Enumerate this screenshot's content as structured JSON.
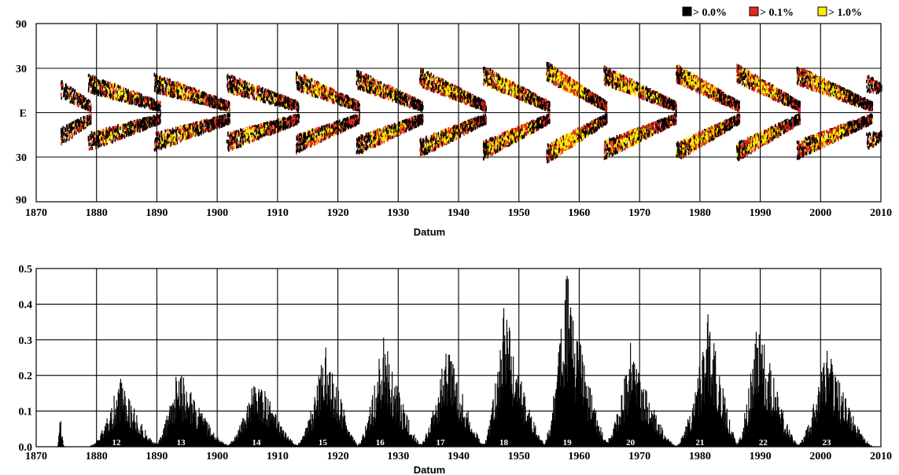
{
  "colors": {
    "level0": "#000000",
    "level1": "#e8281c",
    "level2": "#ffee00",
    "grid": "#000000",
    "bars": "#000000"
  },
  "legend": {
    "items": [
      {
        "label": "> 0.0%",
        "color": "#000000"
      },
      {
        "label": "> 0.1%",
        "color": "#e8281c"
      },
      {
        "label": "> 1.0%",
        "color": "#ffee00"
      }
    ],
    "placement": "top-right"
  },
  "chart_data": [
    {
      "type": "heatmap",
      "title": "",
      "xlabel": "Datum",
      "ylabel": "",
      "xlim": [
        1870,
        2010
      ],
      "xticks": [
        "1870",
        "1880",
        "1890",
        "1900",
        "1910",
        "1920",
        "1930",
        "1940",
        "1950",
        "1960",
        "1970",
        "1980",
        "1990",
        "2000",
        "2010"
      ],
      "yticks": [
        "90",
        "30",
        "E",
        "30",
        "90"
      ],
      "grid": true,
      "cycles": [
        {
          "start": 1874.0,
          "end": 1879.0,
          "latitude_start": 24,
          "latitude_end": 6,
          "intensity": 0.25
        },
        {
          "start": 1878.5,
          "end": 1890.5,
          "latitude_start": 30,
          "latitude_end": 6,
          "intensity": 0.45
        },
        {
          "start": 1889.5,
          "end": 1902.0,
          "latitude_start": 30,
          "latitude_end": 6,
          "intensity": 0.55
        },
        {
          "start": 1901.5,
          "end": 1913.5,
          "latitude_start": 30,
          "latitude_end": 6,
          "intensity": 0.45
        },
        {
          "start": 1913.0,
          "end": 1923.5,
          "latitude_start": 32,
          "latitude_end": 6,
          "intensity": 0.55
        },
        {
          "start": 1923.0,
          "end": 1934.0,
          "latitude_start": 34,
          "latitude_end": 6,
          "intensity": 0.6
        },
        {
          "start": 1933.5,
          "end": 1944.5,
          "latitude_start": 36,
          "latitude_end": 6,
          "intensity": 0.7
        },
        {
          "start": 1944.0,
          "end": 1955.0,
          "latitude_start": 38,
          "latitude_end": 6,
          "intensity": 0.8
        },
        {
          "start": 1954.5,
          "end": 1964.5,
          "latitude_start": 42,
          "latitude_end": 6,
          "intensity": 1.0
        },
        {
          "start": 1964.0,
          "end": 1976.0,
          "latitude_start": 38,
          "latitude_end": 6,
          "intensity": 0.7
        },
        {
          "start": 1976.0,
          "end": 1986.5,
          "latitude_start": 40,
          "latitude_end": 6,
          "intensity": 0.85
        },
        {
          "start": 1986.0,
          "end": 1996.5,
          "latitude_start": 40,
          "latitude_end": 6,
          "intensity": 0.85
        },
        {
          "start": 1996.0,
          "end": 2008.5,
          "latitude_start": 38,
          "latitude_end": 6,
          "intensity": 0.75
        },
        {
          "start": 2007.5,
          "end": 2010.0,
          "latitude_start": 30,
          "latitude_end": 24,
          "intensity": 0.2
        }
      ]
    },
    {
      "type": "bar",
      "title": "",
      "xlabel": "Datum",
      "ylabel": "",
      "xlim": [
        1870,
        2010
      ],
      "ylim": [
        0.0,
        0.5
      ],
      "xticks": [
        "1870",
        "1880",
        "1890",
        "1900",
        "1910",
        "1920",
        "1930",
        "1940",
        "1950",
        "1960",
        "1970",
        "1980",
        "1990",
        "2000",
        "2010"
      ],
      "yticks": [
        "0.0",
        "0.1",
        "0.2",
        "0.3",
        "0.4",
        "0.5"
      ],
      "grid": true,
      "cycle_labels": [
        "12",
        "13",
        "14",
        "15",
        "16",
        "17",
        "18",
        "19",
        "20",
        "21",
        "22",
        "23"
      ],
      "cycle_label_years": [
        1883.3,
        1894.0,
        1906.5,
        1917.5,
        1927.0,
        1937.0,
        1947.5,
        1958.0,
        1968.5,
        1980.0,
        1990.5,
        2001.0
      ],
      "cycles": [
        {
          "start": 1873.5,
          "peak": 1874.0,
          "end": 1874.6,
          "max": 0.1
        },
        {
          "start": 1879.0,
          "peak": 1883.8,
          "end": 1890.5,
          "max": 0.2
        },
        {
          "start": 1889.5,
          "peak": 1893.5,
          "end": 1902.0,
          "max": 0.23
        },
        {
          "start": 1901.5,
          "peak": 1906.5,
          "end": 1913.5,
          "max": 0.22
        },
        {
          "start": 1913.0,
          "peak": 1918.0,
          "end": 1923.5,
          "max": 0.31
        },
        {
          "start": 1923.0,
          "peak": 1927.5,
          "end": 1934.0,
          "max": 0.32
        },
        {
          "start": 1933.5,
          "peak": 1938.0,
          "end": 1944.5,
          "max": 0.31
        },
        {
          "start": 1944.0,
          "peak": 1947.5,
          "end": 1954.5,
          "max": 0.41
        },
        {
          "start": 1954.0,
          "peak": 1957.8,
          "end": 1965.0,
          "max": 0.51
        },
        {
          "start": 1964.0,
          "peak": 1968.5,
          "end": 1976.0,
          "max": 0.29
        },
        {
          "start": 1976.0,
          "peak": 1981.5,
          "end": 1986.5,
          "max": 0.4
        },
        {
          "start": 1986.0,
          "peak": 1989.5,
          "end": 1996.5,
          "max": 0.39
        },
        {
          "start": 1996.0,
          "peak": 2001.0,
          "end": 2008.5,
          "max": 0.29
        }
      ]
    }
  ]
}
